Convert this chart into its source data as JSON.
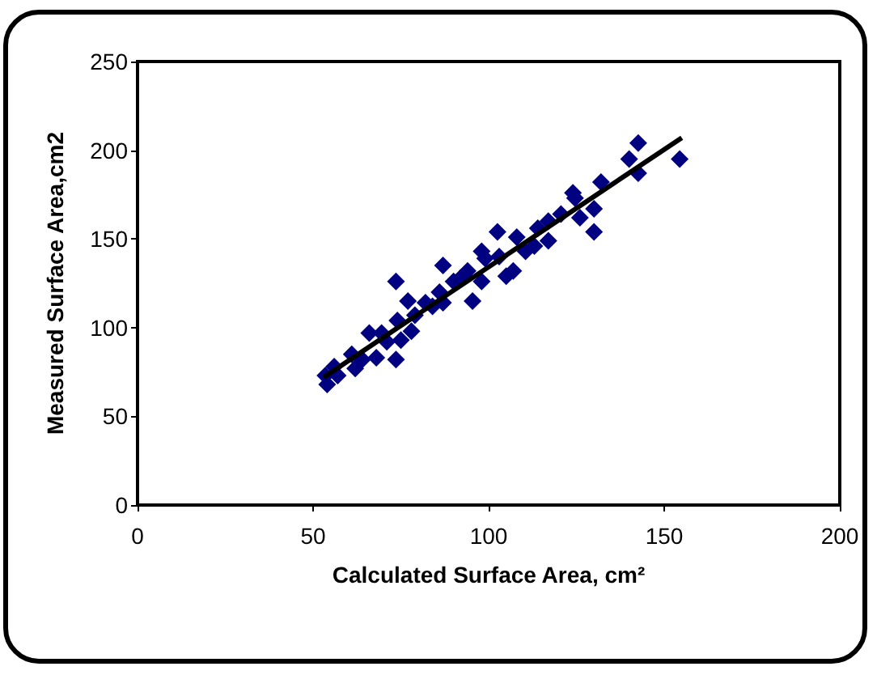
{
  "chart_data": {
    "type": "scatter",
    "xlabel": "Calculated Surface Area, cm²",
    "ylabel": "Measured Surface Area,cm2",
    "xlim": [
      0,
      200
    ],
    "xticks": [
      0,
      50,
      100,
      150,
      200
    ],
    "ylim": [
      0,
      250
    ],
    "yticks": [
      0,
      50,
      100,
      150,
      200,
      250
    ],
    "grid": false,
    "marker": "diamond",
    "series": [
      {
        "type": "scatter",
        "color": "#000080",
        "x": [
          54,
          53.5,
          56,
          57,
          61,
          62,
          64,
          66,
          68,
          69.5,
          71,
          73.6,
          73.6,
          74,
          75,
          77,
          78,
          79,
          82,
          84,
          86,
          87,
          87,
          90,
          92,
          94,
          95.4,
          98,
          98,
          99,
          102.5,
          103,
          105,
          107,
          108,
          110.5,
          113,
          114,
          117,
          117,
          120.6,
          124,
          124.6,
          126,
          130,
          130,
          132,
          140,
          142.6,
          142.6,
          154.4
        ],
        "values": [
          68,
          73,
          78,
          73,
          85,
          77,
          82,
          97,
          83,
          97,
          92,
          126,
          82,
          104,
          93,
          115,
          98,
          107,
          114,
          112,
          120,
          135,
          114,
          126,
          128,
          132,
          115,
          126,
          143,
          139,
          154,
          140,
          129,
          132,
          151,
          143,
          146,
          156,
          149,
          160,
          164,
          176,
          173,
          162,
          167,
          154,
          182,
          195,
          204,
          187,
          195
        ]
      },
      {
        "type": "line",
        "color": "#000000",
        "marker": "none",
        "x": [
          53,
          155
        ],
        "values": [
          72,
          207
        ]
      }
    ]
  }
}
